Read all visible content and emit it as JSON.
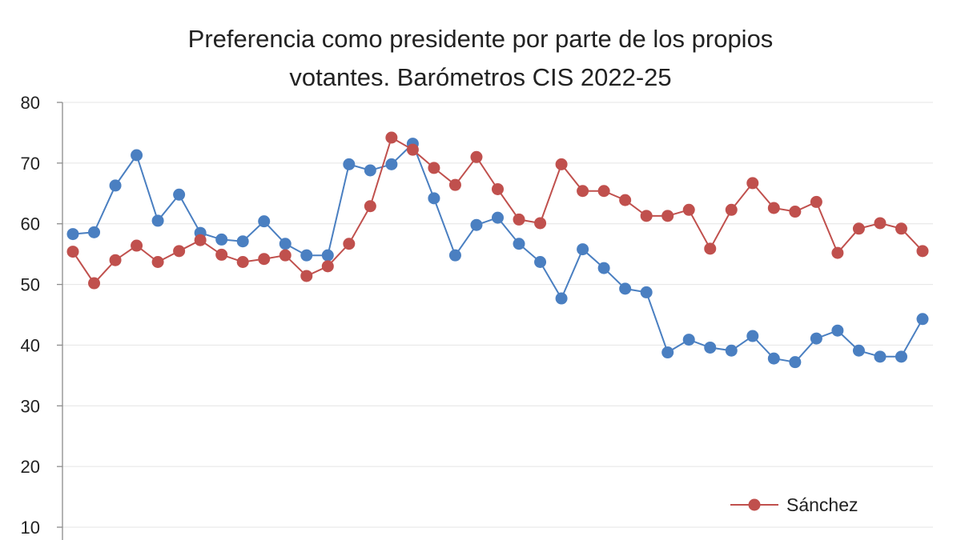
{
  "chart_data": {
    "type": "line",
    "title_lines": [
      "Preferencia como presidente por parte de los propios",
      "votantes. Barómetros CIS 2022-25"
    ],
    "xlabel": "",
    "ylabel": "",
    "ylim": [
      10,
      80
    ],
    "yticks": [
      "80",
      "70",
      "60",
      "50",
      "40",
      "30",
      "20",
      "10"
    ],
    "grid": true,
    "legend_position": "bottom-right",
    "series": [
      {
        "name": "",
        "color": "#4a7fc1",
        "values": [
          58.3,
          58.6,
          66.3,
          71.3,
          60.5,
          64.8,
          58.5,
          57.4,
          57.1,
          60.4,
          56.7,
          54.8,
          54.8,
          69.8,
          68.8,
          69.8,
          73.2,
          64.2,
          54.8,
          59.8,
          61.0,
          56.7,
          53.7,
          47.7,
          55.8,
          52.7,
          49.3,
          48.7,
          38.8,
          40.9,
          39.6,
          39.1,
          41.5,
          37.8,
          37.2,
          41.1,
          42.4,
          39.1,
          38.1,
          38.1,
          44.3
        ]
      },
      {
        "name": "Sánchez",
        "color": "#c0504d",
        "values": [
          55.4,
          50.2,
          54.0,
          56.4,
          53.7,
          55.5,
          57.3,
          54.9,
          53.7,
          54.2,
          54.8,
          51.4,
          53.0,
          56.7,
          62.9,
          74.2,
          72.2,
          69.2,
          66.4,
          71.0,
          65.7,
          60.7,
          60.1,
          69.8,
          65.4,
          65.4,
          63.9,
          61.3,
          61.3,
          62.3,
          55.9,
          62.3,
          66.7,
          62.6,
          62.0,
          63.6,
          55.2,
          59.2,
          60.1,
          59.2,
          55.5
        ]
      }
    ]
  }
}
